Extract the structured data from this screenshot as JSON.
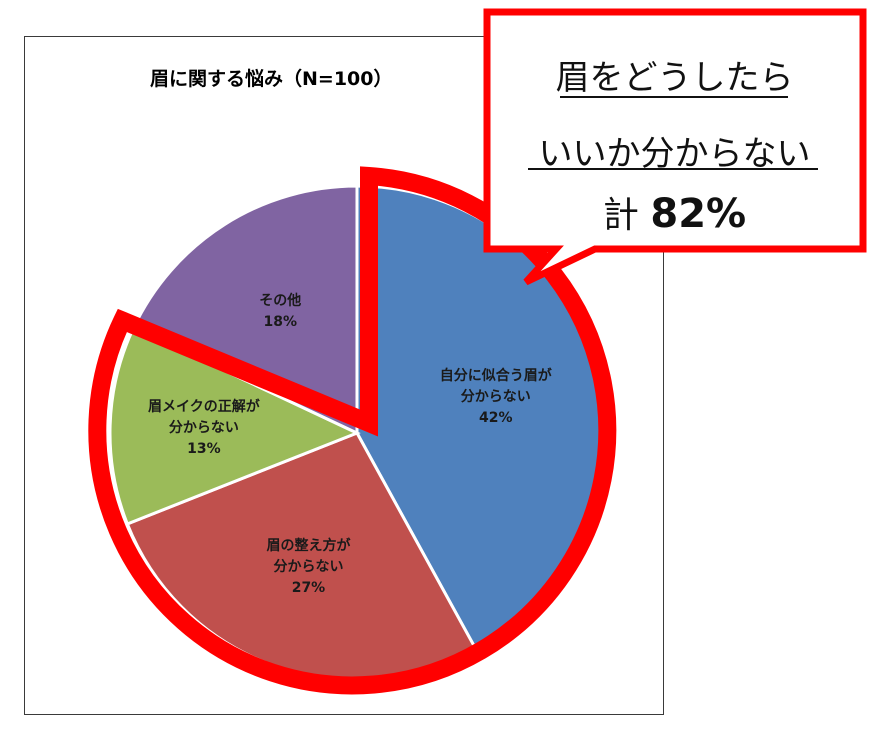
{
  "chart_data": {
    "type": "pie",
    "title": "眉に関する悩み（N=100）",
    "slices": [
      {
        "label": "自分に似合う眉が分からない",
        "label_lines": [
          "自分に似合う眉が",
          "分からない"
        ],
        "value": 42,
        "value_label": "42%",
        "color": "#4F81BD"
      },
      {
        "label": "眉の整え方が分からない",
        "label_lines": [
          "眉の整え方が",
          "分からない"
        ],
        "value": 27,
        "value_label": "27%",
        "color": "#C0504D"
      },
      {
        "label": "眉メイクの正解が分からない",
        "label_lines": [
          "眉メイクの正解が",
          "分からない"
        ],
        "value": 13,
        "value_label": "13%",
        "color": "#9BBB59"
      },
      {
        "label": "その他",
        "label_lines": [
          "その他"
        ],
        "value": 18,
        "value_label": "18%",
        "color": "#8064A2"
      }
    ],
    "legend": "none"
  },
  "callout": {
    "line1": "眉をどうしたら",
    "line2": "いいか分からない",
    "total_prefix": "計",
    "total_value": "82%",
    "border_color": "#FF0000"
  },
  "highlight": {
    "color": "#FF0000",
    "slices": [
      "自分に似合う眉が分からない",
      "眉の整え方が分からない",
      "眉メイクの正解が分からない"
    ]
  }
}
